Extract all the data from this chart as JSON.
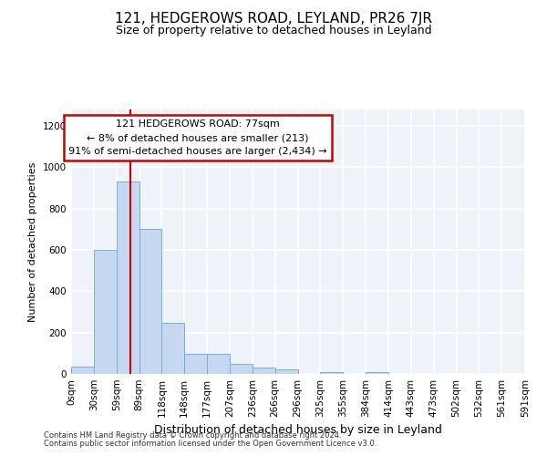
{
  "title": "121, HEDGEROWS ROAD, LEYLAND, PR26 7JR",
  "subtitle": "Size of property relative to detached houses in Leyland",
  "xlabel": "Distribution of detached houses by size in Leyland",
  "ylabel": "Number of detached properties",
  "footer_line1": "Contains HM Land Registry data © Crown copyright and database right 2024.",
  "footer_line2": "Contains public sector information licensed under the Open Government Licence v3.0.",
  "bar_edges": [
    0,
    29.5,
    59,
    88.5,
    118,
    147.5,
    177,
    206.5,
    236,
    265.5,
    295,
    324.5,
    354,
    383.5,
    413,
    442.5,
    472,
    501.5,
    531,
    560.5,
    591
  ],
  "bar_heights": [
    35,
    600,
    930,
    700,
    245,
    95,
    95,
    50,
    30,
    20,
    0,
    10,
    0,
    10,
    0,
    0,
    0,
    0,
    0,
    0
  ],
  "bar_color": "#c5d8f0",
  "bar_edge_color": "#7aadda",
  "tick_labels": [
    "0sqm",
    "30sqm",
    "59sqm",
    "89sqm",
    "118sqm",
    "148sqm",
    "177sqm",
    "207sqm",
    "236sqm",
    "266sqm",
    "296sqm",
    "325sqm",
    "355sqm",
    "384sqm",
    "414sqm",
    "443sqm",
    "473sqm",
    "502sqm",
    "532sqm",
    "561sqm",
    "591sqm"
  ],
  "vline_x": 77,
  "vline_color": "#cc0000",
  "annotation_text": "121 HEDGEROWS ROAD: 77sqm\n← 8% of detached houses are smaller (213)\n91% of semi-detached houses are larger (2,434) →",
  "ylim": [
    0,
    1280
  ],
  "yticks": [
    0,
    200,
    400,
    600,
    800,
    1000,
    1200
  ],
  "bg_color": "#eef2f9",
  "grid_color": "#ffffff",
  "title_fontsize": 11,
  "subtitle_fontsize": 9,
  "ylabel_fontsize": 8,
  "xlabel_fontsize": 9,
  "annotation_fontsize": 8,
  "tick_fontsize": 7.5
}
